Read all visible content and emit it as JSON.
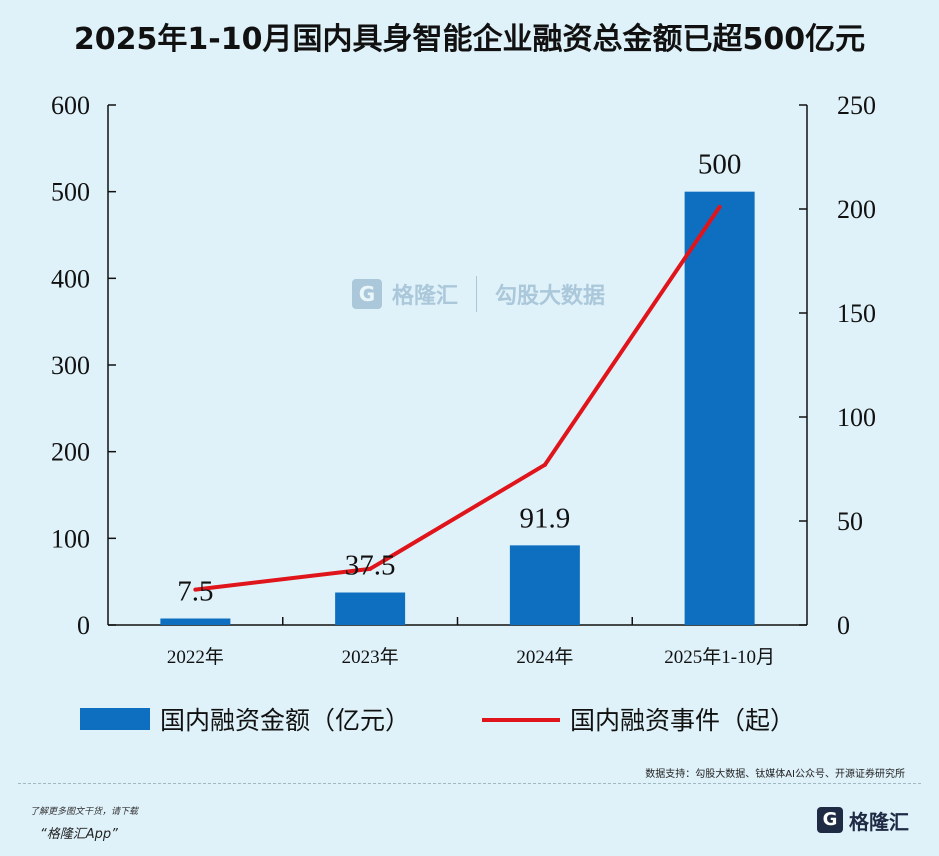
{
  "title": "2025年1-10月国内具身智能企业融资总金额已超500亿元",
  "chart_data": {
    "type": "bar+line",
    "categories": [
      "2022年",
      "2023年",
      "2024年",
      "2025年1-10月"
    ],
    "series": [
      {
        "name": "国内融资金额（亿元）",
        "type": "bar",
        "axis": "left",
        "values": [
          7.5,
          37.5,
          91.9,
          500
        ],
        "data_labels": [
          "7.5",
          "37.5",
          "91.9",
          "500"
        ],
        "color": "#0e6fc1"
      },
      {
        "name": "国内融资事件（起）",
        "type": "line",
        "axis": "right",
        "values": [
          17,
          27,
          77,
          201
        ],
        "color": "#e0141b"
      }
    ],
    "y_left": {
      "range": [
        0,
        600
      ],
      "ticks": [
        0,
        100,
        200,
        300,
        400,
        500,
        600
      ]
    },
    "y_right": {
      "range": [
        0,
        250
      ],
      "ticks": [
        0,
        50,
        100,
        150,
        200,
        250
      ]
    },
    "grid": false,
    "legend": "bottom"
  },
  "watermark": {
    "brand": "格隆汇",
    "partner": "勾股大数据",
    "partner_url": "www.gogudata.com"
  },
  "source": "数据支持：勾股大数据、钛媒体AI公众号、开源证券研究所",
  "footer": {
    "line1": "了解更多图文干货，请下载",
    "line2": "“格隆汇App”",
    "brand": "格隆汇",
    "brand_mark": "G"
  }
}
